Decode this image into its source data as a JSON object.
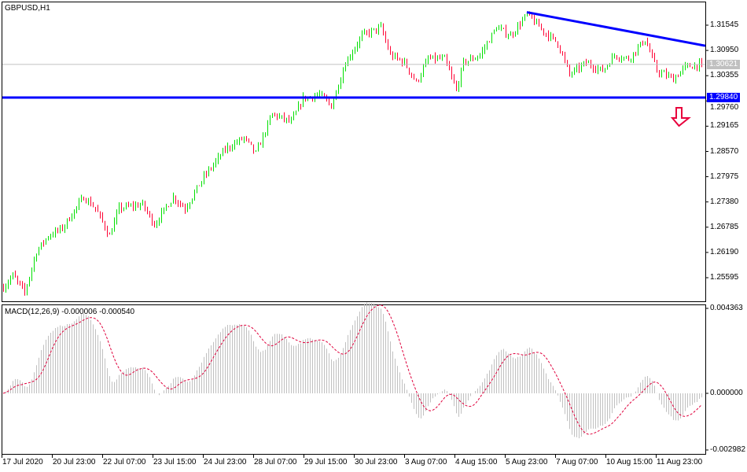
{
  "chart_data": {
    "type": "candlestick",
    "symbol_label": "GBPUSD,H1",
    "timeframe": "H1",
    "price_axis": {
      "ylim": [
        1.252,
        1.32
      ],
      "ticks": [
        "1.31545",
        "1.30950",
        "1.30355",
        "1.29760",
        "1.29165",
        "1.28570",
        "1.27975",
        "1.27380",
        "1.26785",
        "1.26190",
        "1.25595"
      ]
    },
    "time_axis_labels": [
      "17 Jul 2020",
      "20 Jul 23:00",
      "22 Jul 07:00",
      "23 Jul 15:00",
      "24 Jul 23:00",
      "28 Jul 07:00",
      "29 Jul 15:00",
      "30 Jul 23:00",
      "3 Aug 07:00",
      "4 Aug 15:00",
      "5 Aug 23:00",
      "7 Aug 07:00",
      "10 Aug 15:00",
      "11 Aug 23:00"
    ],
    "bar_count": 297,
    "close_path": [
      [
        0,
        1.2537
      ],
      [
        4,
        1.2565
      ],
      [
        9,
        1.2524
      ],
      [
        14,
        1.2621
      ],
      [
        19,
        1.2658
      ],
      [
        25,
        1.2676
      ],
      [
        34,
        1.275
      ],
      [
        39,
        1.2723
      ],
      [
        45,
        1.2658
      ],
      [
        49,
        1.2723
      ],
      [
        59,
        1.2732
      ],
      [
        64,
        1.2685
      ],
      [
        72,
        1.275
      ],
      [
        77,
        1.2723
      ],
      [
        85,
        1.2797
      ],
      [
        94,
        1.2862
      ],
      [
        102,
        1.2889
      ],
      [
        107,
        1.2852
      ],
      [
        114,
        1.2945
      ],
      [
        122,
        1.2926
      ],
      [
        127,
        1.2982
      ],
      [
        134,
        1.2991
      ],
      [
        139,
        1.2964
      ],
      [
        145,
        1.3066
      ],
      [
        152,
        1.313
      ],
      [
        160,
        1.3149
      ],
      [
        164,
        1.3084
      ],
      [
        170,
        1.3066
      ],
      [
        175,
        1.3019
      ],
      [
        180,
        1.3075
      ],
      [
        187,
        1.3075
      ],
      [
        192,
        1.3001
      ],
      [
        195,
        1.3066
      ],
      [
        202,
        1.3084
      ],
      [
        209,
        1.3149
      ],
      [
        215,
        1.313
      ],
      [
        222,
        1.318
      ],
      [
        229,
        1.314
      ],
      [
        235,
        1.3112
      ],
      [
        240,
        1.3038
      ],
      [
        247,
        1.3066
      ],
      [
        254,
        1.3047
      ],
      [
        259,
        1.3084
      ],
      [
        265,
        1.3075
      ],
      [
        272,
        1.3121
      ],
      [
        277,
        1.3047
      ],
      [
        284,
        1.3028
      ],
      [
        289,
        1.3056
      ],
      [
        296,
        1.30621
      ]
    ],
    "current_price": {
      "label": "1.30621",
      "value": 1.30621,
      "color": "#c0c0c0"
    },
    "support_line": {
      "label": "1.29840",
      "value": 1.2984,
      "color": "#0000ff"
    },
    "trendline": {
      "from": [
        222,
        1.3185
      ],
      "to": [
        297,
        1.3106
      ],
      "color": "#0000ff"
    },
    "signal_arrow": {
      "direction": "down",
      "color": "#e8003c"
    },
    "colors": {
      "up": "#00e000",
      "down": "#ff0033",
      "axis": "#000000",
      "histogram": "#c0c0c0",
      "signal": "#e0003c"
    },
    "macd": {
      "label": "MACD(12,26,9) -0.000006 -0.000540",
      "fast": 12,
      "slow": 26,
      "signal": 9,
      "ylim": [
        -0.002982,
        0.004363
      ],
      "ticks": [
        "0.004363",
        "0.000000",
        "-0.002982"
      ]
    }
  }
}
